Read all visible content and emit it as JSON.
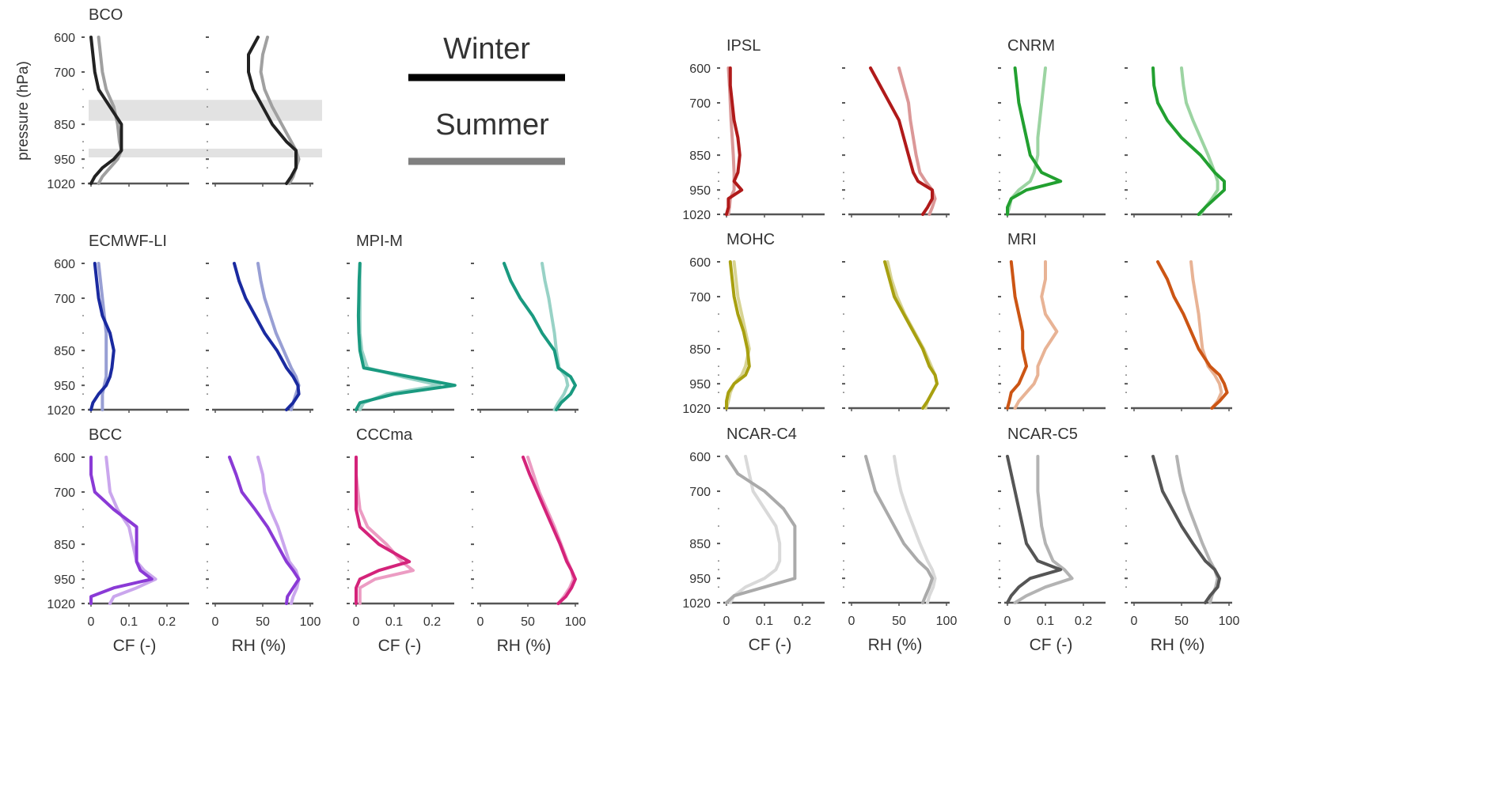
{
  "chart_data": {
    "type": "line",
    "ylabel": "pressure (hPa)",
    "y_ticks": [
      600,
      700,
      850,
      950,
      1020
    ],
    "cf_xlabel": "CF (-)",
    "rh_xlabel": "RH (%)",
    "cf_ticks": [
      "0",
      "0.1",
      "0.2"
    ],
    "rh_ticks": [
      "0",
      "50",
      "100"
    ],
    "cf_range": [
      0,
      0.25
    ],
    "rh_range": [
      0,
      100
    ],
    "levels": [
      600,
      650,
      700,
      750,
      800,
      850,
      900,
      925,
      950,
      975,
      1000,
      1020
    ],
    "legend": {
      "winter": "Winter",
      "summer": "Summer",
      "winter_color": "#000000",
      "summer_color": "#808080"
    },
    "bco_bands": [
      [
        780,
        840
      ],
      [
        920,
        945
      ]
    ],
    "panels": [
      {
        "name": "BCO",
        "color": "#222222",
        "cf_winter": [
          0.0,
          0.005,
          0.01,
          0.02,
          0.05,
          0.08,
          0.08,
          0.08,
          0.06,
          0.03,
          0.01,
          0.0
        ],
        "cf_summer": [
          0.02,
          0.025,
          0.03,
          0.04,
          0.06,
          0.07,
          0.075,
          0.08,
          0.07,
          0.05,
          0.03,
          0.02
        ],
        "rh_winter": [
          45,
          35,
          35,
          40,
          50,
          60,
          75,
          85,
          85,
          85,
          80,
          75
        ],
        "rh_summer": [
          55,
          50,
          48,
          52,
          60,
          70,
          80,
          85,
          88,
          85,
          82,
          78
        ]
      },
      {
        "name": "ECMWF-LI",
        "color": "#1a2aa0",
        "cf_winter": [
          0.01,
          0.015,
          0.02,
          0.03,
          0.05,
          0.06,
          0.055,
          0.05,
          0.04,
          0.02,
          0.005,
          0.0
        ],
        "cf_summer": [
          0.02,
          0.025,
          0.03,
          0.035,
          0.04,
          0.04,
          0.04,
          0.04,
          0.035,
          0.03,
          0.03,
          0.03
        ],
        "rh_winter": [
          20,
          25,
          32,
          42,
          52,
          65,
          75,
          82,
          87,
          88,
          82,
          75
        ],
        "rh_summer": [
          45,
          48,
          52,
          58,
          64,
          72,
          80,
          85,
          88,
          85,
          82,
          80
        ]
      },
      {
        "name": "MPI-M",
        "color": "#1a9a80",
        "cf_winter": [
          0.01,
          0.008,
          0.007,
          0.006,
          0.007,
          0.01,
          0.02,
          0.14,
          0.26,
          0.1,
          0.01,
          0.0
        ],
        "cf_summer": [
          0.01,
          0.01,
          0.01,
          0.01,
          0.01,
          0.015,
          0.03,
          0.12,
          0.22,
          0.08,
          0.02,
          0.01
        ],
        "rh_winter": [
          25,
          32,
          42,
          55,
          65,
          78,
          82,
          95,
          100,
          95,
          85,
          80
        ],
        "rh_summer": [
          65,
          68,
          72,
          75,
          78,
          80,
          83,
          90,
          92,
          88,
          82,
          78
        ]
      },
      {
        "name": "BCC",
        "color": "#8a3ad6",
        "cf_winter": [
          0.0,
          0.0,
          0.01,
          0.06,
          0.12,
          0.12,
          0.12,
          0.13,
          0.16,
          0.06,
          0.0,
          0.0
        ],
        "cf_summer": [
          0.04,
          0.045,
          0.05,
          0.07,
          0.1,
          0.11,
          0.12,
          0.14,
          0.17,
          0.12,
          0.06,
          0.05
        ],
        "rh_winter": [
          15,
          22,
          28,
          42,
          55,
          65,
          75,
          82,
          88,
          82,
          76,
          75
        ],
        "rh_summer": [
          45,
          50,
          52,
          58,
          66,
          72,
          78,
          85,
          88,
          86,
          82,
          80
        ]
      },
      {
        "name": "CCCma",
        "color": "#d4237a",
        "cf_winter": [
          0.0,
          0.0,
          0.0,
          0.0,
          0.01,
          0.06,
          0.14,
          0.06,
          0.01,
          0.0,
          0.0,
          0.0
        ],
        "cf_summer": [
          0.0,
          0.0,
          0.005,
          0.01,
          0.03,
          0.08,
          0.12,
          0.15,
          0.05,
          0.01,
          0.01,
          0.01
        ],
        "rh_winter": [
          45,
          52,
          60,
          68,
          76,
          84,
          91,
          96,
          100,
          96,
          90,
          82
        ],
        "rh_summer": [
          50,
          56,
          62,
          70,
          78,
          85,
          92,
          96,
          98,
          94,
          88,
          82
        ]
      },
      {
        "name": "IPSL",
        "color": "#b01a1a",
        "cf_winter": [
          0.01,
          0.01,
          0.015,
          0.02,
          0.03,
          0.035,
          0.03,
          0.02,
          0.04,
          0.005,
          0.005,
          0.0
        ],
        "cf_summer": [
          0.005,
          0.008,
          0.01,
          0.012,
          0.015,
          0.018,
          0.02,
          0.02,
          0.02,
          0.01,
          0.008,
          0.005
        ],
        "rh_winter": [
          20,
          30,
          40,
          50,
          55,
          60,
          65,
          70,
          85,
          85,
          80,
          75
        ],
        "rh_summer": [
          50,
          55,
          60,
          62,
          65,
          68,
          72,
          78,
          85,
          88,
          85,
          82
        ]
      },
      {
        "name": "CNRM",
        "color": "#22a030",
        "cf_winter": [
          0.02,
          0.025,
          0.03,
          0.04,
          0.05,
          0.06,
          0.09,
          0.14,
          0.05,
          0.01,
          0.0,
          0.0
        ],
        "cf_summer": [
          0.1,
          0.095,
          0.09,
          0.085,
          0.08,
          0.08,
          0.07,
          0.06,
          0.03,
          0.01,
          0.005,
          0.0
        ],
        "rh_winter": [
          20,
          21,
          25,
          35,
          50,
          70,
          85,
          95,
          95,
          85,
          75,
          68
        ],
        "rh_summer": [
          50,
          52,
          55,
          62,
          70,
          78,
          85,
          88,
          88,
          82,
          75,
          70
        ]
      },
      {
        "name": "MOHC",
        "color": "#a8a010",
        "cf_winter": [
          0.01,
          0.015,
          0.02,
          0.03,
          0.045,
          0.055,
          0.06,
          0.05,
          0.02,
          0.005,
          0.0,
          0.0
        ],
        "cf_summer": [
          0.02,
          0.025,
          0.03,
          0.04,
          0.05,
          0.06,
          0.05,
          0.04,
          0.02,
          0.01,
          0.005,
          0.0
        ],
        "rh_winter": [
          35,
          40,
          45,
          55,
          65,
          75,
          82,
          88,
          90,
          85,
          80,
          75
        ],
        "rh_summer": [
          38,
          42,
          48,
          56,
          66,
          76,
          84,
          88,
          90,
          85,
          80,
          78
        ]
      },
      {
        "name": "MRI",
        "color": "#cc5514",
        "cf_winter": [
          0.01,
          0.015,
          0.02,
          0.03,
          0.04,
          0.04,
          0.05,
          0.04,
          0.03,
          0.01,
          0.005,
          0.0
        ],
        "cf_summer": [
          0.1,
          0.1,
          0.09,
          0.1,
          0.13,
          0.1,
          0.08,
          0.08,
          0.07,
          0.05,
          0.03,
          0.02
        ],
        "rh_winter": [
          25,
          35,
          42,
          52,
          60,
          68,
          80,
          90,
          95,
          98,
          90,
          82
        ],
        "rh_summer": [
          60,
          62,
          65,
          68,
          70,
          72,
          78,
          85,
          90,
          92,
          88,
          82
        ]
      },
      {
        "name": "NCAR-C4",
        "color": "#aaaaaa",
        "cf_winter": [
          0.0,
          0.03,
          0.1,
          0.15,
          0.18,
          0.18,
          0.18,
          0.18,
          0.18,
          0.1,
          0.02,
          0.0
        ],
        "cf_summer": [
          0.05,
          0.06,
          0.07,
          0.1,
          0.13,
          0.14,
          0.14,
          0.13,
          0.1,
          0.05,
          0.02,
          0.01
        ],
        "rh_winter": [
          15,
          20,
          25,
          35,
          45,
          55,
          70,
          80,
          85,
          82,
          78,
          75
        ],
        "rh_summer": [
          45,
          48,
          52,
          58,
          65,
          72,
          80,
          85,
          88,
          86,
          82,
          80
        ]
      },
      {
        "name": "NCAR-C5",
        "color": "#555555",
        "cf_winter": [
          0.0,
          0.01,
          0.02,
          0.03,
          0.04,
          0.05,
          0.08,
          0.14,
          0.06,
          0.03,
          0.01,
          0.0
        ],
        "cf_summer": [
          0.08,
          0.08,
          0.08,
          0.085,
          0.09,
          0.1,
          0.12,
          0.15,
          0.17,
          0.1,
          0.05,
          0.02
        ],
        "rh_winter": [
          20,
          25,
          30,
          40,
          50,
          62,
          75,
          85,
          90,
          88,
          80,
          75
        ],
        "rh_summer": [
          45,
          48,
          52,
          58,
          65,
          72,
          80,
          85,
          88,
          86,
          82,
          80
        ]
      }
    ]
  }
}
